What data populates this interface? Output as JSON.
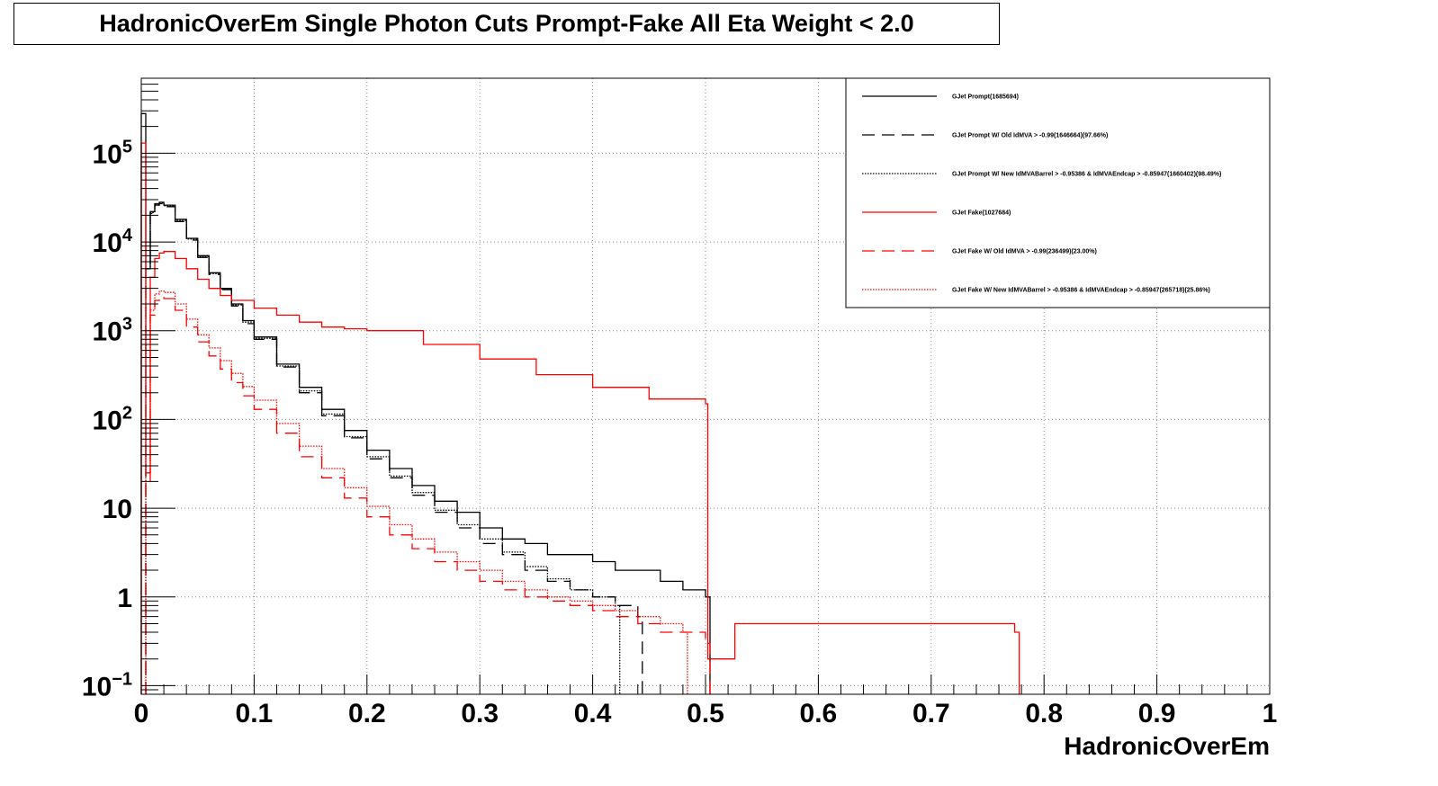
{
  "chart_data": {
    "type": "line",
    "title": "HadronicOverEm Single Photon Cuts Prompt-Fake All Eta Weight < 2.0",
    "xlabel": "HadronicOverEm",
    "ylabel": "",
    "xlim": [
      0,
      1
    ],
    "ylim": [
      0.08,
      700000
    ],
    "y_scale": "log",
    "grid": true,
    "legend_position": "top-right",
    "x_ticks": [
      "0",
      "0.1",
      "0.2",
      "0.3",
      "0.4",
      "0.5",
      "0.6",
      "0.7",
      "0.8",
      "0.9",
      "1"
    ],
    "y_ticks": [
      {
        "value": 0.1,
        "base": "10",
        "exp": "−1"
      },
      {
        "value": 1,
        "base": "1",
        "exp": ""
      },
      {
        "value": 10,
        "base": "10",
        "exp": ""
      },
      {
        "value": 100,
        "base": "10",
        "exp": "2"
      },
      {
        "value": 1000,
        "base": "10",
        "exp": "3"
      },
      {
        "value": 10000,
        "base": "10",
        "exp": "4"
      },
      {
        "value": 100000,
        "base": "10",
        "exp": "5"
      }
    ],
    "series": [
      {
        "name": "GJet Prompt(1685694)",
        "color": "#000000",
        "dash": "solid",
        "x": [
          0.0,
          0.004,
          0.008,
          0.012,
          0.016,
          0.02,
          0.03,
          0.04,
          0.05,
          0.06,
          0.07,
          0.08,
          0.09,
          0.1,
          0.12,
          0.14,
          0.16,
          0.18,
          0.2,
          0.22,
          0.24,
          0.26,
          0.28,
          0.3,
          0.32,
          0.34,
          0.36,
          0.38,
          0.4,
          0.42,
          0.44,
          0.46,
          0.48,
          0.5
        ],
        "y": [
          280000,
          5000,
          22000,
          27000,
          28000,
          26000,
          18000,
          11000,
          7000,
          4500,
          3000,
          2000,
          1300,
          850,
          420,
          230,
          130,
          75,
          45,
          28,
          18,
          12,
          9,
          6,
          4.5,
          4,
          3,
          3,
          2.5,
          2,
          2,
          1.5,
          1.2,
          1
        ]
      },
      {
        "name": "GJet Prompt W/ Old IdMVA > -0.99(1646664)(97.66%)",
        "color": "#000000",
        "dash": "long",
        "x": [
          0.004,
          0.008,
          0.012,
          0.016,
          0.02,
          0.03,
          0.04,
          0.05,
          0.06,
          0.07,
          0.08,
          0.09,
          0.1,
          0.12,
          0.14,
          0.16,
          0.18,
          0.2,
          0.22,
          0.24,
          0.26,
          0.28,
          0.3,
          0.32,
          0.34,
          0.36,
          0.38,
          0.4,
          0.42,
          0.44
        ],
        "y": [
          5000,
          21000,
          26000,
          27000,
          25000,
          17000,
          10500,
          6700,
          4300,
          2900,
          1900,
          1200,
          800,
          390,
          200,
          110,
          62,
          36,
          22,
          14,
          9,
          6,
          4,
          3,
          2,
          1.5,
          1.2,
          1,
          0.8,
          0.6
        ]
      },
      {
        "name": "GJet Prompt W/ New IdMVABarrel > -0.95386 & IdMVAEndcap > -0.85947(1660402)(98.49%)",
        "color": "#000000",
        "dash": "dotted",
        "x": [
          0.004,
          0.008,
          0.012,
          0.016,
          0.02,
          0.03,
          0.04,
          0.05,
          0.06,
          0.07,
          0.08,
          0.09,
          0.1,
          0.12,
          0.14,
          0.16,
          0.18,
          0.2,
          0.22,
          0.24,
          0.26,
          0.28,
          0.3,
          0.32,
          0.34,
          0.36,
          0.38,
          0.4,
          0.42
        ],
        "y": [
          5000,
          21500,
          26500,
          27500,
          25500,
          17500,
          10800,
          6800,
          4400,
          2950,
          1950,
          1250,
          820,
          400,
          210,
          115,
          64,
          38,
          23,
          15,
          9.5,
          6.5,
          4.5,
          3.2,
          2.2,
          1.6,
          1.2,
          1,
          0.8
        ]
      },
      {
        "name": "GJet Fake(1027684)",
        "color": "#ff0000",
        "dash": "solid",
        "x": [
          0.0,
          0.004,
          0.008,
          0.012,
          0.016,
          0.02,
          0.03,
          0.04,
          0.05,
          0.06,
          0.07,
          0.08,
          0.1,
          0.12,
          0.14,
          0.16,
          0.18,
          0.2,
          0.25,
          0.3,
          0.35,
          0.4,
          0.45,
          0.5,
          0.502,
          0.526,
          0.76,
          0.774
        ],
        "y": [
          130000,
          25,
          4000,
          6500,
          7500,
          7800,
          6500,
          5000,
          3800,
          3000,
          2500,
          2200,
          1800,
          1500,
          1250,
          1100,
          1050,
          1000,
          700,
          480,
          320,
          230,
          170,
          150,
          0.2,
          0.5,
          0.5,
          0.4
        ]
      },
      {
        "name": "GJet Fake W/ Old IdMVA > -0.99(236499)(23.00%)",
        "color": "#ff0000",
        "dash": "long",
        "x": [
          0.004,
          0.008,
          0.012,
          0.016,
          0.02,
          0.03,
          0.04,
          0.05,
          0.06,
          0.07,
          0.08,
          0.09,
          0.1,
          0.12,
          0.14,
          0.16,
          0.18,
          0.2,
          0.22,
          0.24,
          0.26,
          0.28,
          0.3,
          0.32,
          0.34,
          0.36,
          0.38,
          0.4,
          0.42,
          0.44,
          0.46,
          0.48,
          0.5
        ],
        "y": [
          20,
          1500,
          2200,
          2400,
          2300,
          1700,
          1100,
          750,
          520,
          370,
          260,
          185,
          130,
          70,
          38,
          22,
          13,
          8,
          5,
          3.5,
          2.5,
          2,
          1.5,
          1.2,
          1,
          0.9,
          0.8,
          0.7,
          0.6,
          0.5,
          0.4,
          0.4,
          0.3
        ]
      },
      {
        "name": "GJet Fake W/ New IdMVABarrel > -0.95386 & IdMVAEndcap > -0.85947(265718)(25.86%)",
        "color": "#ff0000",
        "dash": "dotted",
        "x": [
          0.004,
          0.008,
          0.012,
          0.016,
          0.02,
          0.03,
          0.04,
          0.05,
          0.06,
          0.07,
          0.08,
          0.09,
          0.1,
          0.12,
          0.14,
          0.16,
          0.18,
          0.2,
          0.22,
          0.24,
          0.26,
          0.28,
          0.3,
          0.32,
          0.34,
          0.36,
          0.38,
          0.4,
          0.42,
          0.44,
          0.46,
          0.48
        ],
        "y": [
          25,
          1700,
          2600,
          2800,
          2700,
          2000,
          1350,
          900,
          640,
          460,
          330,
          235,
          165,
          90,
          50,
          28,
          17,
          10.5,
          6.5,
          4.5,
          3.2,
          2.5,
          2,
          1.5,
          1.2,
          1,
          0.9,
          0.8,
          0.7,
          0.6,
          0.5,
          0.4
        ]
      }
    ]
  }
}
